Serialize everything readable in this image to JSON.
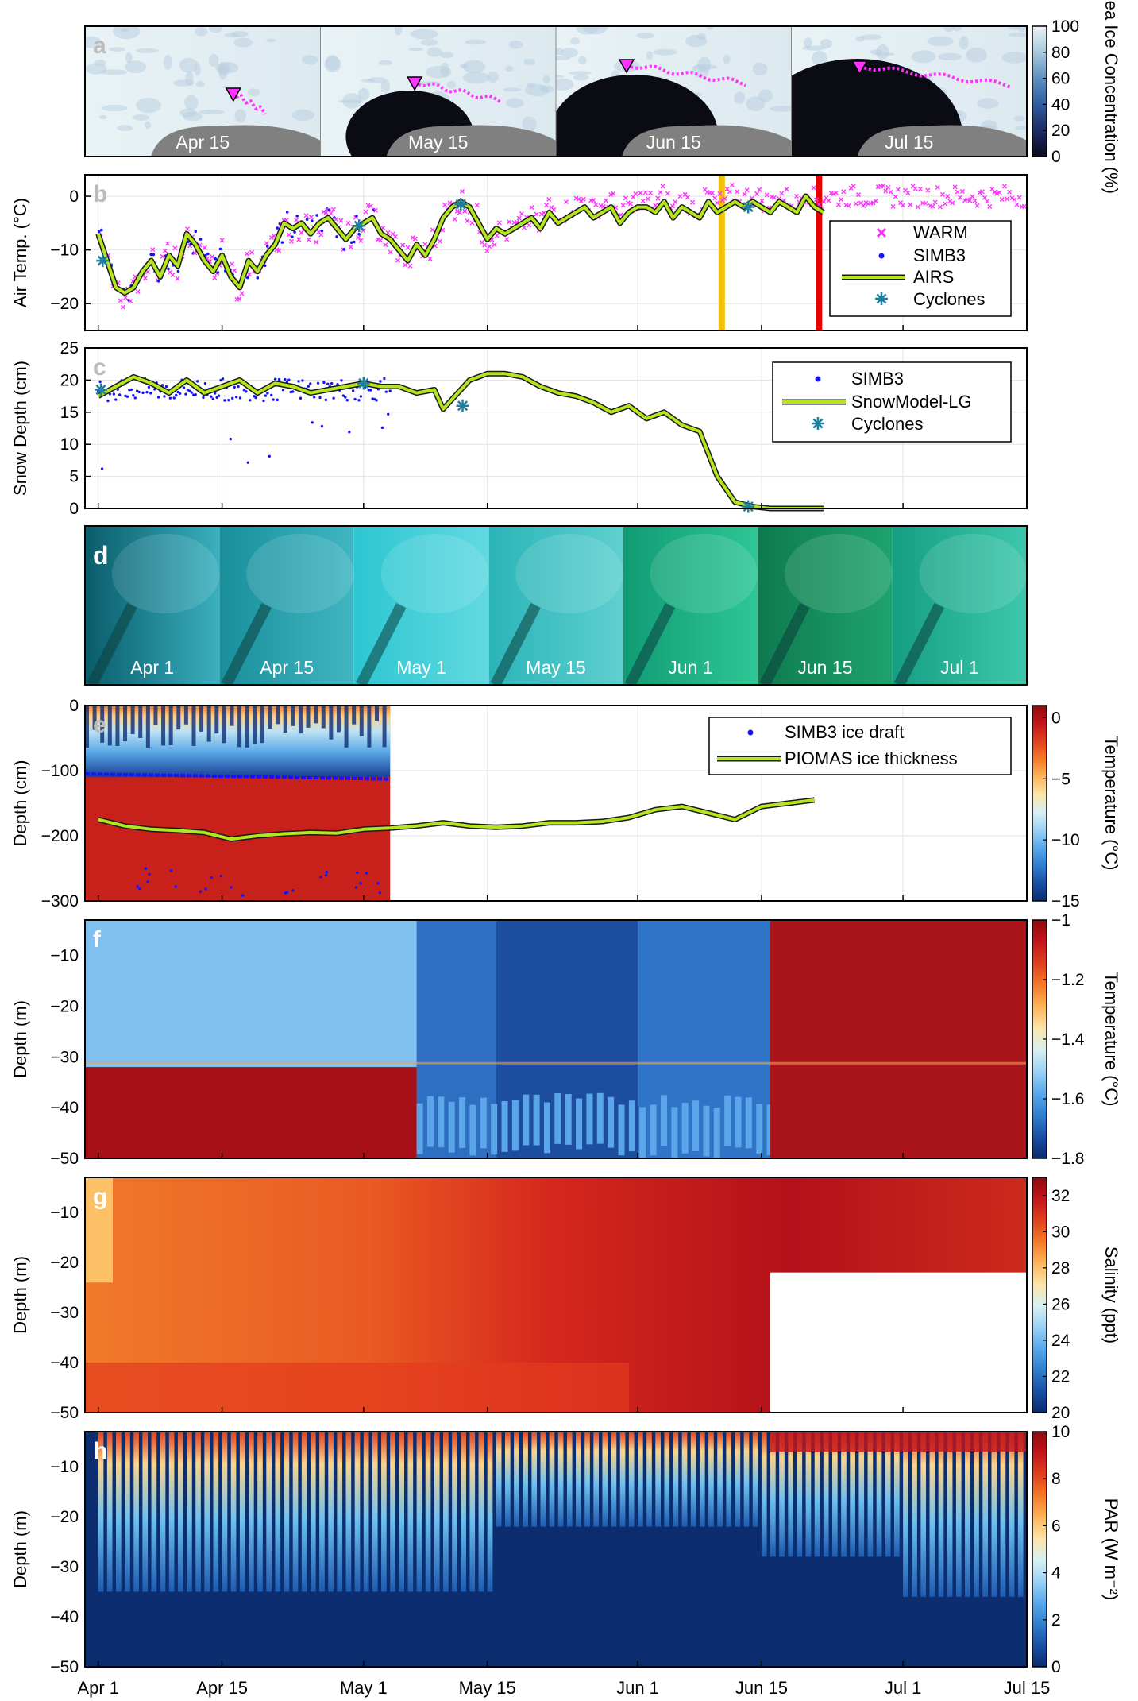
{
  "figure": {
    "x_ticks": [
      "Apr 1",
      "Apr 15",
      "May 1",
      "May 15",
      "Jun 1",
      "Jun 15",
      "Jul 1",
      "Jul 15"
    ],
    "x_tick_days": [
      0,
      14,
      30,
      44,
      61,
      75,
      91,
      105
    ]
  },
  "chart_data": [
    {
      "panel": "a",
      "type": "heatmap",
      "image_labels": [
        "Apr 15",
        "May 15",
        "Jun 15",
        "Jul 15"
      ],
      "colorbar": {
        "label": "Sea Ice Concentration (%)",
        "ticks": [
          0,
          20,
          40,
          60,
          80,
          100
        ],
        "range": [
          0,
          100
        ]
      },
      "colors": {
        "land": "#808080",
        "track": "#ff33ff",
        "marker": "#ff33ff"
      }
    },
    {
      "panel": "b",
      "type": "scatter",
      "ylabel": "Air Temp. (°C)",
      "ylim": [
        -25,
        4
      ],
      "yticks": [
        -20,
        -10,
        0
      ],
      "legend": [
        "WARM",
        "SIMB3",
        "AIRS",
        "Cyclones"
      ],
      "legend_position": "right",
      "series": [
        {
          "name": "AIRS",
          "x": [
            0,
            1,
            2,
            3,
            4,
            5,
            6,
            7,
            8,
            9,
            10,
            11,
            12,
            13,
            14,
            15,
            16,
            17,
            18,
            19,
            20,
            21,
            22,
            23,
            24,
            25,
            26,
            27,
            28,
            29,
            30,
            31,
            32,
            33,
            34,
            35,
            36,
            37,
            38,
            39,
            40,
            41,
            42,
            43,
            44,
            45,
            46,
            47,
            48,
            49,
            50,
            51,
            52,
            53,
            54,
            55,
            56,
            57,
            58,
            59,
            60,
            61,
            62,
            63,
            64,
            65,
            66,
            67,
            68,
            69,
            70,
            71,
            72,
            73,
            74,
            75,
            76,
            77,
            78,
            79,
            80,
            81,
            82
          ],
          "y": [
            -7,
            -12,
            -17,
            -18,
            -17,
            -14,
            -12,
            -15,
            -11,
            -13,
            -7,
            -9,
            -12,
            -14,
            -11,
            -15,
            -17,
            -12,
            -14,
            -11,
            -9,
            -5,
            -6,
            -5,
            -7,
            -5,
            -4,
            -6,
            -8,
            -6,
            -5,
            -4,
            -7,
            -8,
            -10,
            -12,
            -9,
            -11,
            -8,
            -4,
            -2,
            -1,
            -2,
            -5,
            -8,
            -6,
            -7,
            -6,
            -5,
            -4,
            -6,
            -3,
            -5,
            -4,
            -3,
            -2,
            -4,
            -3,
            -2,
            -5,
            -3,
            -2,
            -2,
            -3,
            -1,
            -4,
            -2,
            -3,
            -4,
            -1,
            -3,
            -2,
            -1,
            -2,
            -1,
            -2,
            -3,
            -1,
            -2,
            -3,
            0,
            -2,
            -3
          ]
        },
        {
          "name": "Cyclones",
          "x": [
            0.5,
            29.5,
            41,
            73.5
          ],
          "y": [
            -12,
            -5.5,
            -1.5,
            -2
          ]
        }
      ],
      "vertical_lines": [
        {
          "day": 70.5,
          "color": "#f2c200"
        },
        {
          "day": 81.5,
          "color": "#e60000"
        }
      ]
    },
    {
      "panel": "c",
      "type": "line",
      "ylabel": "Snow Depth (cm)",
      "ylim": [
        0,
        25
      ],
      "yticks": [
        0,
        5,
        10,
        15,
        20,
        25
      ],
      "legend": [
        "SIMB3",
        "SnowModel-LG",
        "Cyclones"
      ],
      "legend_position": "top-right",
      "series": [
        {
          "name": "SnowModel-LG",
          "x": [
            0,
            2,
            4,
            6,
            8,
            10,
            12,
            14,
            16,
            18,
            20,
            22,
            24,
            26,
            28,
            30,
            32,
            34,
            36,
            38,
            39,
            40,
            42,
            44,
            46,
            48,
            50,
            52,
            54,
            56,
            58,
            60,
            62,
            64,
            66,
            68,
            70,
            72,
            74,
            76,
            78,
            80,
            82
          ],
          "y": [
            17.5,
            19,
            20.5,
            19.5,
            18,
            20,
            18,
            19,
            20,
            18,
            19.5,
            19,
            18,
            18.5,
            19,
            19.5,
            19,
            19,
            18,
            18.5,
            15.5,
            17,
            20,
            21,
            21,
            20.5,
            19,
            18,
            17.5,
            16.5,
            15,
            16,
            14,
            15,
            13,
            12,
            5,
            1,
            0.3,
            0,
            0,
            0,
            0
          ]
        },
        {
          "name": "Cyclones",
          "x": [
            0.3,
            30,
            41.2,
            73.5
          ],
          "y": [
            18.5,
            19.5,
            16,
            0.3
          ]
        }
      ]
    },
    {
      "panel": "d",
      "type": "table",
      "image_labels": [
        "Apr 1",
        "Apr 15",
        "May 1",
        "May 15",
        "Jun 1",
        "Jun 15",
        "Jul 1"
      ]
    },
    {
      "panel": "e",
      "type": "heatmap",
      "ylabel": "Depth (cm)",
      "ylim": [
        -300,
        0
      ],
      "yticks": [
        -300,
        -200,
        -100,
        0
      ],
      "legend": [
        "SIMB3 ice draft",
        "PIOMAS ice thickness"
      ],
      "legend_position": "top-right",
      "colorbar": {
        "label": "Temperature (°C)",
        "ticks": [
          -15,
          -10,
          -5,
          0
        ],
        "range": [
          -15,
          1
        ]
      },
      "series": [
        {
          "name": "PIOMAS ice thickness",
          "x": [
            0,
            3,
            6,
            9,
            12,
            15,
            18,
            21,
            24,
            27,
            30,
            33,
            36,
            39,
            42,
            45,
            48,
            51,
            54,
            57,
            60,
            63,
            66,
            69,
            72,
            75,
            78,
            81
          ],
          "y": [
            -175,
            -185,
            -190,
            -192,
            -195,
            -205,
            -200,
            -197,
            -195,
            -196,
            -190,
            -188,
            -185,
            -180,
            -185,
            -187,
            -185,
            -180,
            -180,
            -178,
            -172,
            -160,
            -155,
            -165,
            -175,
            -155,
            -150,
            -145
          ]
        },
        {
          "name": "SIMB3 ice draft",
          "x": [
            0,
            33
          ],
          "y": [
            -105,
            -115
          ]
        }
      ]
    },
    {
      "panel": "f",
      "type": "heatmap",
      "ylabel": "Depth (m)",
      "ylim": [
        -50,
        -3
      ],
      "yticks": [
        -50,
        -40,
        -30,
        -20,
        -10
      ],
      "colorbar": {
        "label": "Temperature (°C)",
        "ticks": [
          -1.8,
          -1.6,
          -1.4,
          -1.2,
          -1.0
        ],
        "range": [
          -1.8,
          -1.0
        ]
      }
    },
    {
      "panel": "g",
      "type": "heatmap",
      "ylabel": "Depth (m)",
      "ylim": [
        -50,
        -3
      ],
      "yticks": [
        -50,
        -40,
        -30,
        -20,
        -10
      ],
      "colorbar": {
        "label": "Salinity (ppt)",
        "ticks": [
          20,
          22,
          24,
          26,
          28,
          30,
          32
        ],
        "range": [
          20,
          33
        ]
      }
    },
    {
      "panel": "h",
      "type": "heatmap",
      "ylabel": "Depth (m)",
      "ylim": [
        -50,
        -3
      ],
      "yticks": [
        -50,
        -40,
        -30,
        -20,
        -10
      ],
      "colorbar": {
        "label": "PAR (W m⁻²)",
        "ticks": [
          0,
          2,
          4,
          6,
          8,
          10
        ],
        "range": [
          0,
          10
        ]
      }
    }
  ]
}
